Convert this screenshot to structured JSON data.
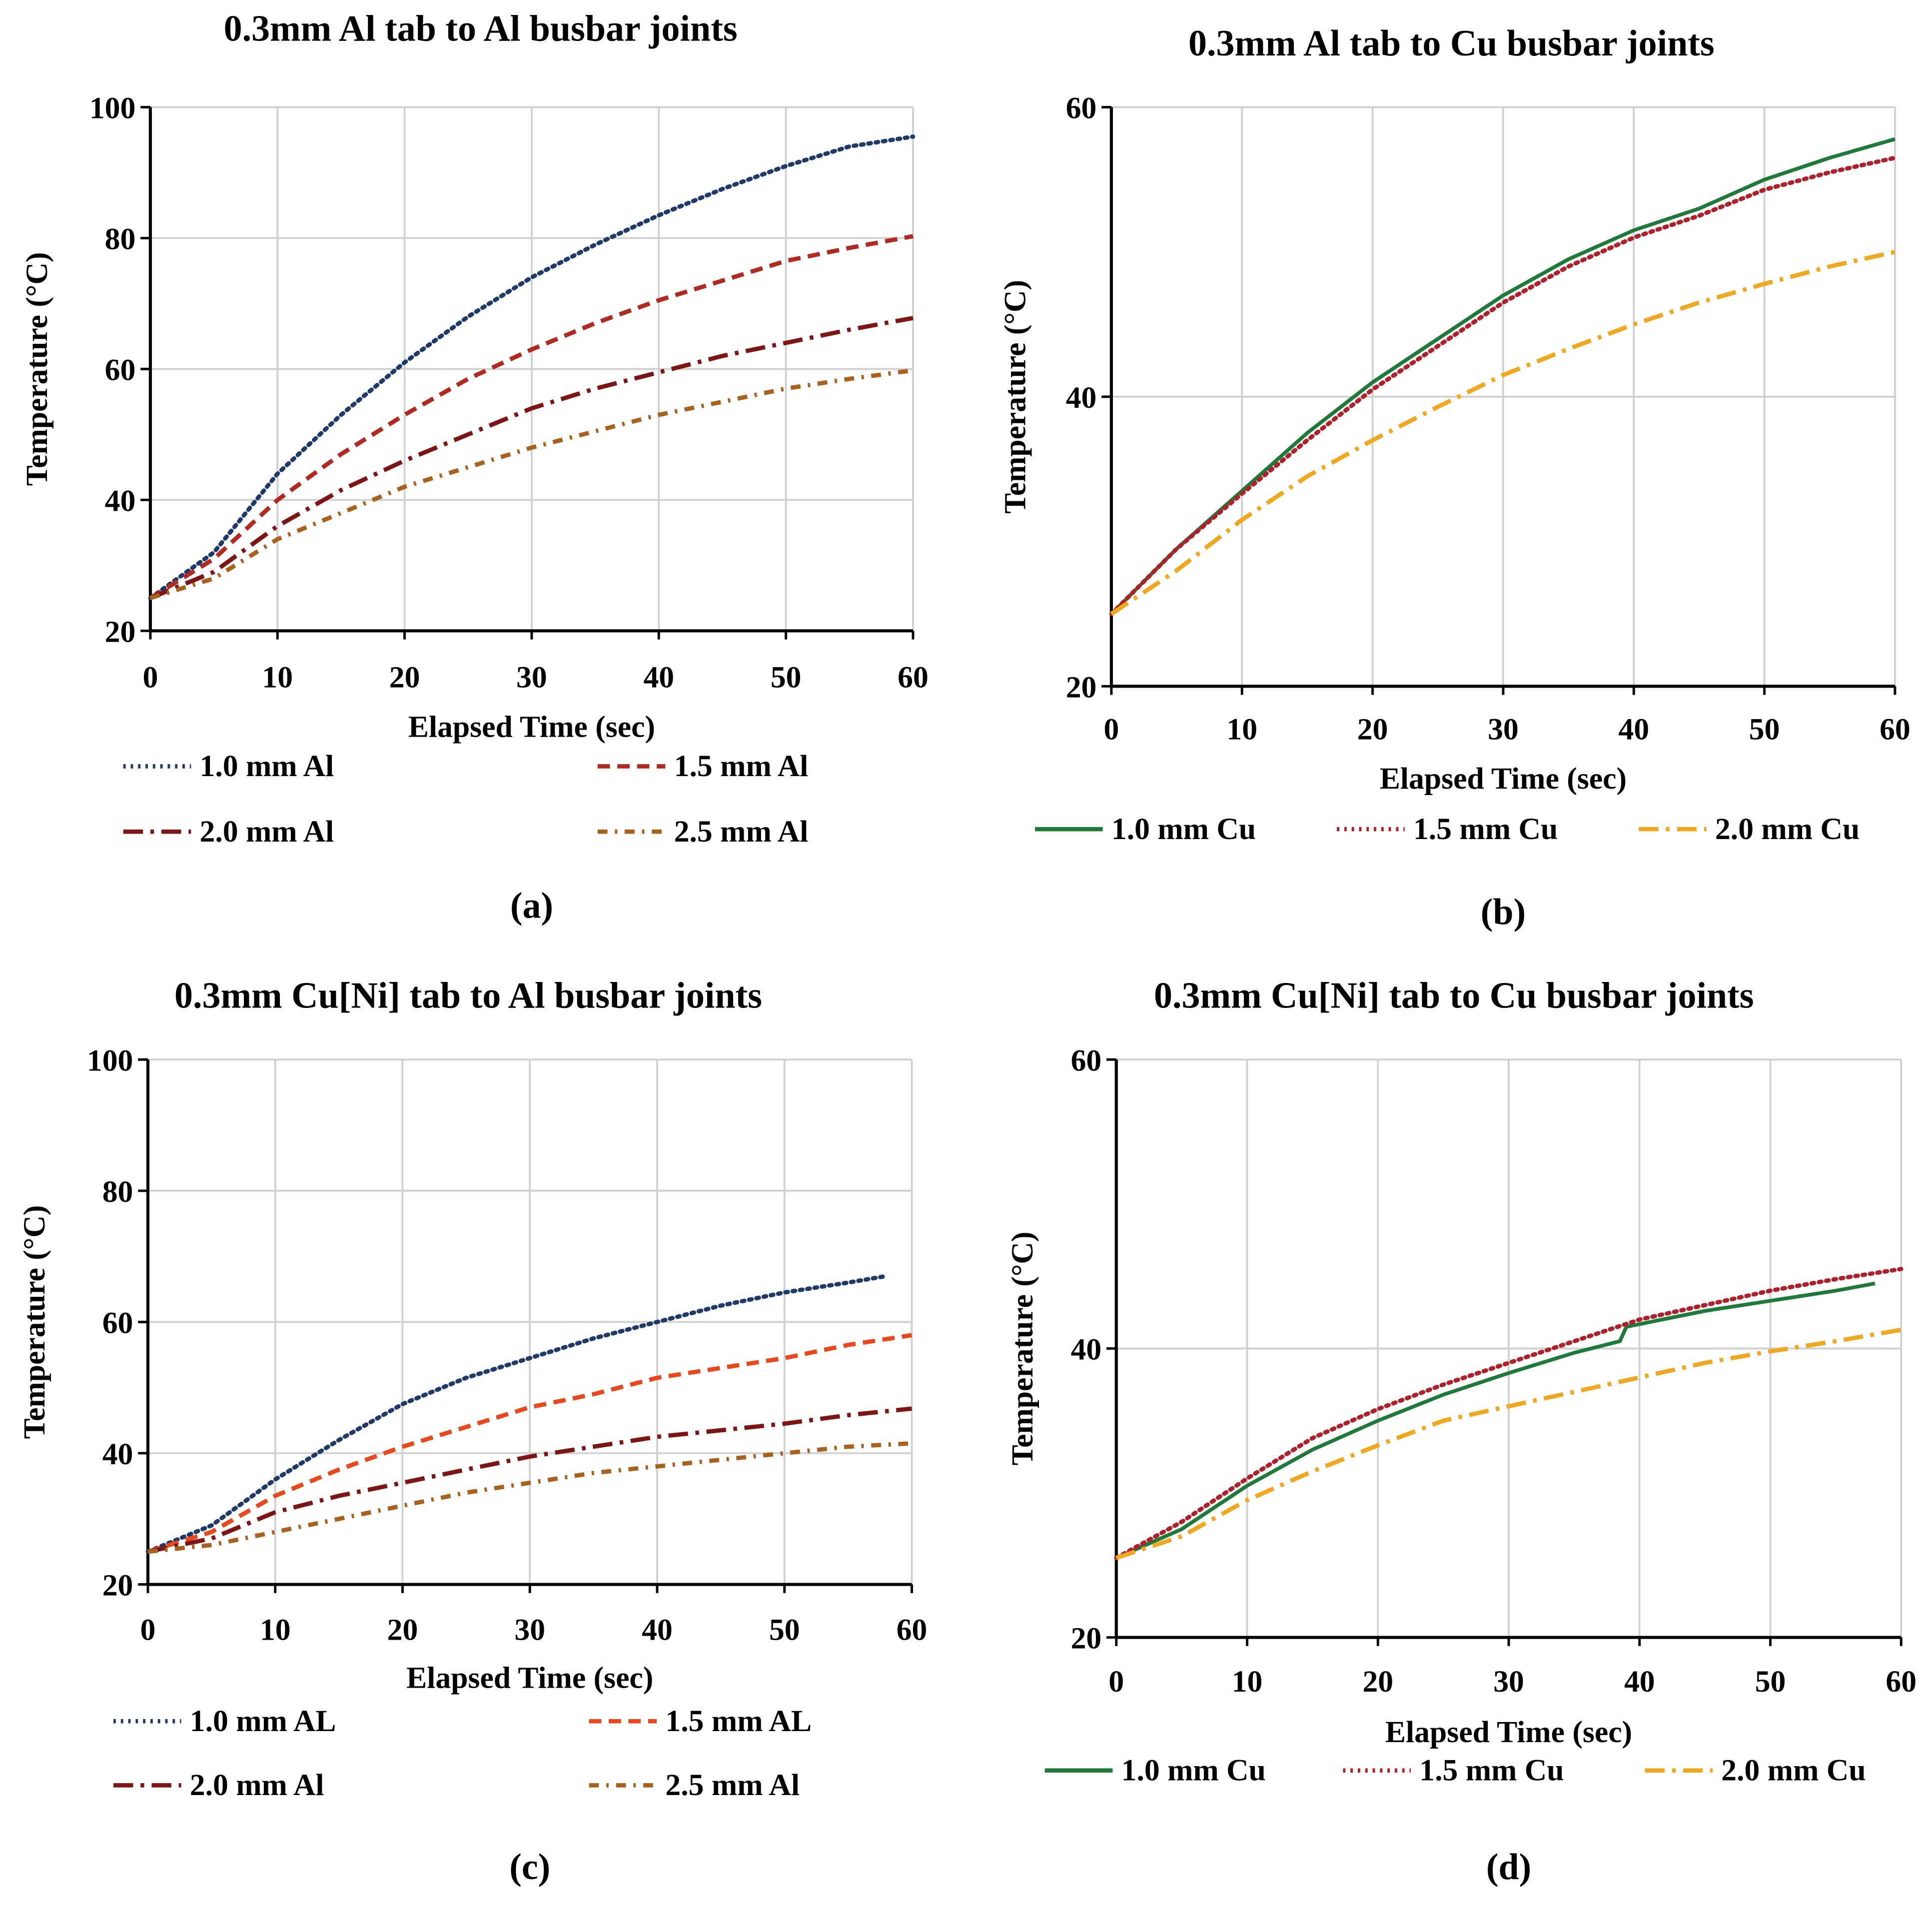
{
  "chart_data": [
    {
      "type": "line",
      "panel_label": "(a)",
      "title": "0.3mm Al tab to Al busbar joints",
      "xlabel": "Elapsed Time (sec)",
      "ylabel": "Temperature (°C)",
      "xlim": [
        0,
        60
      ],
      "ylim": [
        20,
        100
      ],
      "xticks": [
        0,
        10,
        20,
        30,
        40,
        50,
        60
      ],
      "yticks": [
        20,
        40,
        60,
        80,
        100
      ],
      "grid": true,
      "legend": "bottom",
      "x": [
        0,
        5,
        10,
        15,
        20,
        25,
        30,
        35,
        40,
        45,
        50,
        55,
        60
      ],
      "series": [
        {
          "name": "1.0 mm Al",
          "style": "dotted",
          "color": "#1f3a68",
          "values": [
            25,
            32,
            44,
            53,
            61,
            68,
            74,
            79,
            83.5,
            87.5,
            91,
            94,
            95.5
          ]
        },
        {
          "name": "1.5 mm Al",
          "style": "dashed",
          "color": "#b02a22",
          "values": [
            25,
            31,
            40,
            47,
            53,
            58.5,
            63,
            67,
            70.5,
            73.5,
            76.5,
            78.5,
            80.3
          ]
        },
        {
          "name": "2.0 mm Al",
          "style": "longdash-dot",
          "color": "#7d1515",
          "values": [
            25,
            29,
            36,
            41.5,
            46,
            50,
            54,
            57,
            59.5,
            62,
            64,
            66,
            67.8
          ]
        },
        {
          "name": "2.5 mm Al",
          "style": "dash-dot",
          "color": "#a8621e",
          "values": [
            25,
            28,
            34,
            38,
            42,
            45,
            48,
            50.5,
            53,
            55,
            57,
            58.5,
            59.8
          ]
        }
      ]
    },
    {
      "type": "line",
      "panel_label": "(b)",
      "title": "0.3mm Al tab to Cu busbar joints",
      "xlabel": "Elapsed Time (sec)",
      "ylabel": "Temperature (°C)",
      "xlim": [
        0,
        60
      ],
      "ylim": [
        20,
        60
      ],
      "xticks": [
        0,
        10,
        20,
        30,
        40,
        50,
        60
      ],
      "yticks": [
        20,
        40,
        60
      ],
      "grid": true,
      "legend": "bottom",
      "x": [
        0,
        5,
        10,
        15,
        20,
        25,
        30,
        35,
        40,
        45,
        50,
        55,
        60
      ],
      "series": [
        {
          "name": "1.0 mm Cu",
          "style": "solid",
          "color": "#1f7a3a",
          "values": [
            25,
            29.5,
            33.5,
            37.5,
            41,
            44,
            47,
            49.5,
            51.5,
            53,
            55,
            56.5,
            57.8
          ]
        },
        {
          "name": "1.5 mm Cu",
          "style": "dotted",
          "color": "#b0202a",
          "values": [
            25,
            29.5,
            33.3,
            37,
            40.5,
            43.5,
            46.5,
            49,
            51,
            52.5,
            54.3,
            55.5,
            56.5
          ]
        },
        {
          "name": "2.0 mm Cu",
          "style": "longdash-dot",
          "color": "#f0a820",
          "values": [
            25,
            28,
            31.5,
            34.5,
            37,
            39.3,
            41.5,
            43.3,
            45,
            46.5,
            47.8,
            49,
            50
          ]
        }
      ]
    },
    {
      "type": "line",
      "panel_label": "(c)",
      "title": "0.3mm Cu[Ni] tab to Al busbar joints",
      "xlabel": "Elapsed Time (sec)",
      "ylabel": "Temperature (°C)",
      "xlim": [
        0,
        60
      ],
      "ylim": [
        20,
        100
      ],
      "xticks": [
        0,
        10,
        20,
        30,
        40,
        50,
        60
      ],
      "yticks": [
        20,
        40,
        60,
        80,
        100
      ],
      "grid": true,
      "legend": "bottom",
      "x": [
        0,
        5,
        10,
        15,
        20,
        25,
        30,
        35,
        40,
        45,
        50,
        55,
        58
      ],
      "series": [
        {
          "name": "1.0 mm AL",
          "style": "dotted",
          "color": "#1f3a68",
          "values": [
            25,
            29,
            36,
            42,
            47.5,
            51.5,
            54.5,
            57.5,
            60,
            62.5,
            64.5,
            66,
            67
          ]
        },
        {
          "name": "1.5 mm AL",
          "style": "dashed",
          "color": "#e8481c",
          "x": [
            0,
            5,
            10,
            15,
            20,
            25,
            30,
            35,
            40,
            45,
            50,
            55,
            60
          ],
          "values": [
            25,
            28,
            33.5,
            37.5,
            41,
            44,
            47,
            49,
            51.5,
            53,
            54.5,
            56.5,
            58
          ]
        },
        {
          "name": "2.0 mm Al",
          "style": "longdash-dot",
          "color": "#7d1515",
          "x": [
            0,
            5,
            10,
            15,
            20,
            25,
            30,
            35,
            40,
            45,
            50,
            55,
            60
          ],
          "values": [
            25,
            27,
            31,
            33.5,
            35.5,
            37.5,
            39.5,
            41,
            42.5,
            43.5,
            44.5,
            45.8,
            46.8
          ]
        },
        {
          "name": "2.5 mm Al",
          "style": "dash-dot",
          "color": "#a8621e",
          "x": [
            0,
            5,
            10,
            15,
            20,
            25,
            30,
            35,
            40,
            45,
            50,
            55,
            60
          ],
          "values": [
            25,
            26,
            28,
            30,
            32,
            34,
            35.5,
            37,
            38,
            39,
            40,
            41,
            41.5
          ]
        }
      ]
    },
    {
      "type": "line",
      "panel_label": "(d)",
      "title": "0.3mm Cu[Ni] tab to Cu busbar joints",
      "xlabel": "Elapsed Time (sec)",
      "ylabel": "Temperature (°C)",
      "xlim": [
        0,
        60
      ],
      "ylim": [
        20,
        60
      ],
      "xticks": [
        0,
        10,
        20,
        30,
        40,
        50,
        60
      ],
      "yticks": [
        20,
        40,
        60
      ],
      "grid": true,
      "legend": "bottom",
      "x": [
        0,
        5,
        10,
        15,
        20,
        25,
        30,
        35,
        38.5,
        39,
        45,
        50,
        55,
        58
      ],
      "series": [
        {
          "name": "1.0 mm Cu",
          "style": "solid",
          "color": "#1f7a3a",
          "values": [
            25.5,
            27.5,
            30.5,
            33,
            35,
            36.8,
            38.3,
            39.7,
            40.5,
            41.5,
            42.6,
            43.3,
            44,
            44.5
          ]
        },
        {
          "name": "1.5 mm Cu",
          "style": "dotted",
          "color": "#b0202a",
          "x": [
            0,
            5,
            10,
            15,
            20,
            25,
            30,
            35,
            40,
            45,
            50,
            55,
            60
          ],
          "values": [
            25.5,
            28,
            31,
            33.8,
            35.8,
            37.5,
            39,
            40.5,
            42,
            43,
            44,
            44.8,
            45.5
          ]
        },
        {
          "name": "2.0 mm Cu",
          "style": "longdash-dot",
          "color": "#f0a820",
          "x": [
            0,
            5,
            10,
            15,
            20,
            25,
            30,
            35,
            40,
            45,
            50,
            55,
            60
          ],
          "values": [
            25.5,
            27,
            29.5,
            31.5,
            33.3,
            35,
            36,
            37,
            38,
            39,
            39.8,
            40.5,
            41.3
          ]
        }
      ]
    }
  ]
}
